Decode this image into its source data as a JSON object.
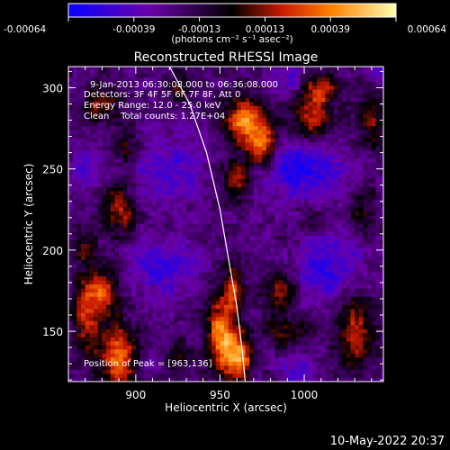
{
  "chart_data": {
    "type": "heatmap",
    "title": "Reconstructed RHESSI Image",
    "xlabel": "Heliocentric X (arcsec)",
    "ylabel": "Heliocentric Y (arcsec)",
    "xlim": [
      860,
      1047
    ],
    "ylim": [
      119,
      313
    ],
    "xticks": [
      900,
      950,
      1000
    ],
    "yticks": [
      150,
      200,
      250,
      300
    ],
    "colorbar": {
      "ticks": [
        "-0.00064",
        "-0.00039",
        "-0.00013",
        "0.00013",
        "0.00039",
        "0.00064"
      ],
      "units_line": "(photons cm⁻² s⁻¹ asec⁻²)",
      "range": [
        -0.00064,
        0.00064
      ]
    },
    "annotations": {
      "time": "9-Jan-2013 06:30:08.000 to 06:36:08.000",
      "detectors": "Detectors: 3F 4F 5F 6F 7F 8F, Att 0",
      "energy": "Energy Range: 12.0 - 25.0 keV",
      "method": "Clean    Total counts: 1.27E+04",
      "peak": "Position of Peak = [963,136]"
    },
    "peak": [
      963,
      136
    ],
    "limb_curve": [
      [
        920,
        313
      ],
      [
        932,
        290
      ],
      [
        942,
        260
      ],
      [
        950,
        225
      ],
      [
        955,
        195
      ],
      [
        960,
        165
      ],
      [
        963,
        140
      ],
      [
        965,
        119
      ]
    ],
    "blobs": [
      [
        960,
        135,
        9,
        14,
        1.0
      ],
      [
        950,
        150,
        8,
        20,
        0.85
      ],
      [
        958,
        175,
        6,
        15,
        0.7
      ],
      [
        890,
        135,
        12,
        18,
        0.9
      ],
      [
        880,
        175,
        10,
        15,
        0.7
      ],
      [
        870,
        160,
        8,
        20,
        0.55
      ],
      [
        965,
        280,
        12,
        14,
        0.9
      ],
      [
        975,
        265,
        9,
        14,
        0.8
      ],
      [
        960,
        245,
        8,
        12,
        0.6
      ],
      [
        1005,
        282,
        12,
        15,
        0.65
      ],
      [
        1010,
        300,
        10,
        10,
        0.5
      ],
      [
        880,
        290,
        10,
        10,
        0.55
      ],
      [
        893,
        265,
        8,
        10,
        0.45
      ],
      [
        890,
        225,
        10,
        15,
        0.55
      ],
      [
        1040,
        280,
        10,
        18,
        0.45
      ],
      [
        1035,
        225,
        8,
        14,
        0.35
      ],
      [
        1030,
        150,
        12,
        25,
        0.6
      ],
      [
        985,
        175,
        10,
        12,
        0.5
      ],
      [
        990,
        150,
        12,
        10,
        0.4
      ],
      [
        870,
        200,
        8,
        10,
        0.4
      ],
      [
        925,
        300,
        8,
        8,
        0.35
      ],
      [
        925,
        135,
        8,
        10,
        0.3
      ],
      [
        1005,
        220,
        8,
        8,
        0.3
      ],
      [
        920,
        250,
        20,
        20,
        -0.4
      ],
      [
        1000,
        250,
        25,
        20,
        -0.55
      ],
      [
        1015,
        190,
        20,
        20,
        -0.5
      ],
      [
        915,
        190,
        20,
        18,
        -0.45
      ],
      [
        870,
        250,
        10,
        12,
        -0.3
      ],
      [
        990,
        305,
        10,
        8,
        -0.35
      ],
      [
        1045,
        310,
        8,
        8,
        -0.3
      ],
      [
        905,
        130,
        8,
        10,
        -0.25
      ],
      [
        995,
        125,
        10,
        10,
        -0.35
      ]
    ]
  },
  "footer": {
    "timestamp": "10-May-2022 20:37"
  }
}
